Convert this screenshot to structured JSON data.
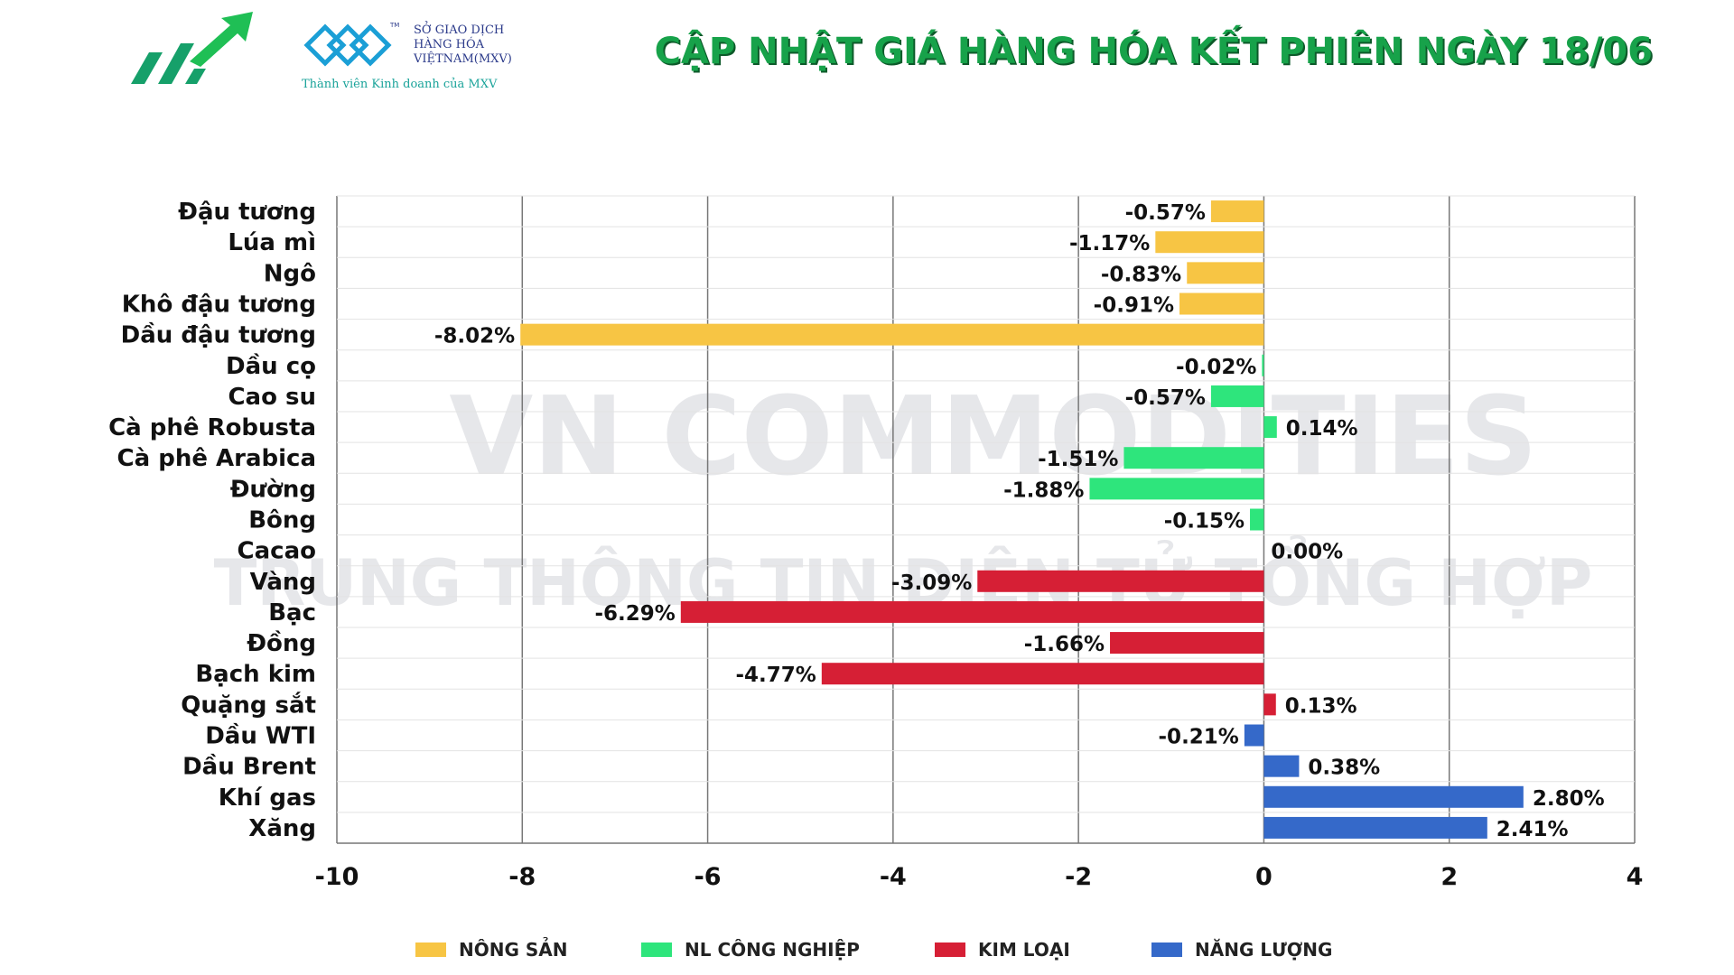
{
  "header": {
    "title": "CẬP NHẬT GIÁ HÀNG HÓA KẾT PHIÊN NGÀY 18/06",
    "mxv_name_lines": [
      "SỞ GIAO DỊCH",
      "HÀNG HÓA",
      "VIỆTNAM(MXV)"
    ],
    "mxv_subtitle": "Thành viên Kinh doanh của MXV",
    "mxv_tm": "TM"
  },
  "watermark": {
    "line1": "VN COMMODITIES",
    "line2": "TRUNG THÔNG TIN ĐIỆN TỬ TỔNG HỢP"
  },
  "colors": {
    "nong_san": "#f7c544",
    "nl_cong_nghiep": "#2ee57c",
    "kim_loai": "#d61f35",
    "nang_luong": "#3569c9",
    "title": "#17a24a"
  },
  "chart_data": {
    "type": "bar",
    "orientation": "horizontal",
    "xlim": [
      -10,
      4
    ],
    "xticks": [
      -10,
      -8,
      -6,
      -4,
      -2,
      0,
      2,
      4
    ],
    "grid": "vertical",
    "legend_position": "bottom",
    "categories": [
      "Đậu tương",
      "Lúa mì",
      "Ngô",
      "Khô đậu tương",
      "Dầu đậu tương",
      "Dầu cọ",
      "Cao su",
      "Cà phê Robusta",
      "Cà phê Arabica",
      "Đường",
      "Bông",
      "Cacao",
      "Vàng",
      "Bạc",
      "Đồng",
      "Bạch kim",
      "Quặng sắt",
      "Dầu WTI",
      "Dầu Brent",
      "Khí gas",
      "Xăng"
    ],
    "values": [
      -0.57,
      -1.17,
      -0.83,
      -0.91,
      -8.02,
      -0.02,
      -0.57,
      0.14,
      -1.51,
      -1.88,
      -0.15,
      0.0,
      -3.09,
      -6.29,
      -1.66,
      -4.77,
      0.13,
      -0.21,
      0.38,
      2.8,
      2.41
    ],
    "value_labels": [
      "-0.57%",
      "-1.17%",
      "-0.83%",
      "-0.91%",
      "-8.02%",
      "-0.02%",
      "-0.57%",
      "0.14%",
      "-1.51%",
      "-1.88%",
      "-0.15%",
      "0.00%",
      "-3.09%",
      "-6.29%",
      "-1.66%",
      "-4.77%",
      "0.13%",
      "-0.21%",
      "0.38%",
      "2.80%",
      "2.41%"
    ],
    "groups": [
      "nong_san",
      "nong_san",
      "nong_san",
      "nong_san",
      "nong_san",
      "nl_cong_nghiep",
      "nl_cong_nghiep",
      "nl_cong_nghiep",
      "nl_cong_nghiep",
      "nl_cong_nghiep",
      "nl_cong_nghiep",
      "nl_cong_nghiep",
      "kim_loai",
      "kim_loai",
      "kim_loai",
      "kim_loai",
      "kim_loai",
      "nang_luong",
      "nang_luong",
      "nang_luong",
      "nang_luong"
    ],
    "legend": [
      {
        "key": "nong_san",
        "name": "NÔNG SẢN"
      },
      {
        "key": "nl_cong_nghiep",
        "name": "NL CÔNG NGHIỆP"
      },
      {
        "key": "kim_loai",
        "name": "KIM LOẠI"
      },
      {
        "key": "nang_luong",
        "name": "NĂNG LƯỢNG"
      }
    ]
  }
}
